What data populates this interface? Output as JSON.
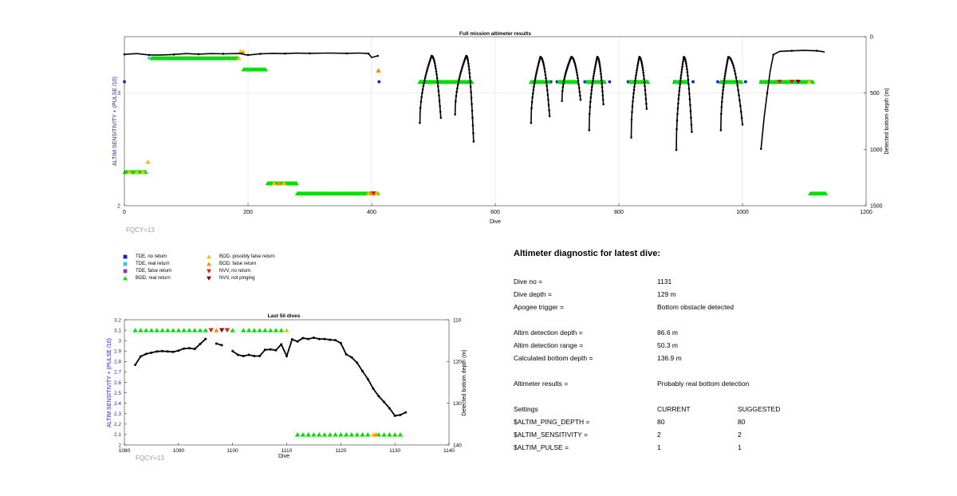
{
  "chart_data": [
    {
      "type": "scatter",
      "title": "Full mission altimeter results",
      "xlabel": "Dive",
      "ylabel_left": "ALTIM SENSITIVITY + (PULSE /10)",
      "ylabel_right": "Detected bottom depth (m)",
      "xlim": [
        0,
        1200
      ],
      "ylim_left": [
        2,
        3.5
      ],
      "ylim_right": [
        1500,
        0
      ],
      "xticks": [
        "0",
        "200",
        "400",
        "600",
        "800",
        "1000",
        "1200"
      ],
      "yticks_left": [
        "2",
        "3"
      ],
      "yticks_right": [
        "0",
        "500",
        "1000",
        "1500"
      ],
      "grid": true,
      "annotation": "FQCY=13",
      "series": [
        {
          "name": "TDE, no return",
          "color": "#0a22cc",
          "marker": "square",
          "y": 3.1,
          "x": [
            0,
            412,
            480,
            510,
            560,
            665,
            690,
            700,
            725,
            745,
            785,
            815,
            845,
            890,
            920,
            960,
            985,
            1005,
            1030,
            1055
          ]
        },
        {
          "name": "TDE, real return",
          "color": "#33c8e0",
          "marker": "square",
          "y": 3.31,
          "x": [
            40,
            45
          ]
        },
        {
          "name": "BOD, real return",
          "color": "#00e000",
          "marker": "triangle-up",
          "segments": [
            {
              "x0": 1,
              "x1": 35,
              "y": 2.3
            },
            {
              "x0": 45,
              "x1": 185,
              "y": 3.31
            },
            {
              "x0": 193,
              "x1": 230,
              "y": 3.21
            },
            {
              "x0": 232,
              "x1": 280,
              "y": 2.2
            },
            {
              "x0": 280,
              "x1": 410,
              "y": 2.11
            },
            {
              "x0": 478,
              "x1": 563,
              "y": 3.1
            },
            {
              "x0": 658,
              "x1": 688,
              "y": 3.1
            },
            {
              "x0": 703,
              "x1": 733,
              "y": 3.1
            },
            {
              "x0": 748,
              "x1": 778,
              "y": 3.1
            },
            {
              "x0": 818,
              "x1": 848,
              "y": 3.1
            },
            {
              "x0": 890,
              "x1": 910,
              "y": 3.1
            },
            {
              "x0": 965,
              "x1": 1000,
              "y": 3.1
            },
            {
              "x0": 1030,
              "x1": 1115,
              "y": 3.1
            },
            {
              "x0": 1110,
              "x1": 1135,
              "y": 2.11
            }
          ]
        },
        {
          "name": "BOD, possibly false return",
          "color": "#f5c000",
          "marker": "triangle-up",
          "points": [
            [
              8,
              2.3
            ],
            [
              20,
              2.3
            ],
            [
              30,
              2.3
            ],
            [
              38,
              2.39
            ],
            [
              185,
              3.31
            ],
            [
              188,
              3.37
            ],
            [
              192,
              3.37
            ],
            [
              242,
              2.2
            ],
            [
              258,
              2.2
            ],
            [
              395,
              2.11
            ],
            [
              408,
              2.11
            ],
            [
              1108,
              3.1
            ]
          ]
        },
        {
          "name": "BOD, false return",
          "color": "#ff8c00",
          "marker": "triangle-up",
          "points": [
            [
              411,
              3.2
            ],
            [
              250,
              2.2
            ],
            [
              400,
              2.11
            ]
          ]
        },
        {
          "name": "NVV, no return",
          "color": "#e41a1c",
          "marker": "triangle-down",
          "points": [
            [
              1060,
              3.1
            ],
            [
              1080,
              3.1
            ],
            [
              403,
              2.11
            ]
          ]
        },
        {
          "name": "NVV, not pinging",
          "color": "#8b0000",
          "marker": "triangle-down",
          "points": [
            [
              1090,
              3.1
            ]
          ]
        },
        {
          "name": "Detected bottom depth",
          "color": "#000000",
          "marker": "dot-line",
          "axis": "right",
          "curves": [
            {
              "x0": 0,
              "x1": 410,
              "pts": [
                [
                  0,
                  157
                ],
                [
                  20,
                  150
                ],
                [
                  40,
                  162
                ],
                [
                  60,
                  162
                ],
                [
                  80,
                  158
                ],
                [
                  100,
                  150
                ],
                [
                  120,
                  155
                ],
                [
                  140,
                  150
                ],
                [
                  160,
                  152
                ],
                [
                  180,
                  150
                ],
                [
                  190,
                  150
                ],
                [
                  195,
                  160
                ],
                [
                  200,
                  162
                ],
                [
                  210,
                  158
                ],
                [
                  220,
                  152
                ],
                [
                  240,
                  148
                ],
                [
                  260,
                  150
                ],
                [
                  280,
                  146
                ],
                [
                  300,
                  148
                ],
                [
                  330,
                  145
                ],
                [
                  360,
                  148
                ],
                [
                  380,
                  145
                ],
                [
                  395,
                  150
                ],
                [
                  400,
                  185
                ],
                [
                  410,
                  170
                ]
              ]
            },
            {
              "type": "dive",
              "x0": 478,
              "xpk": 497,
              "x1": 512,
              "top": 170,
              "bot": 765,
              "endbot": 720
            },
            {
              "type": "dive",
              "x0": 535,
              "xpk": 553,
              "x1": 565,
              "top": 170,
              "bot": 690,
              "endbot": 930
            },
            {
              "type": "dive",
              "x0": 658,
              "xpk": 673,
              "x1": 688,
              "top": 180,
              "bot": 765,
              "endbot": 705
            },
            {
              "type": "dive",
              "x0": 708,
              "xpk": 723,
              "x1": 738,
              "top": 180,
              "bot": 570,
              "endbot": 560
            },
            {
              "type": "dive",
              "x0": 752,
              "xpk": 765,
              "x1": 775,
              "top": 180,
              "bot": 830,
              "endbot": 600
            },
            {
              "type": "dive",
              "x0": 820,
              "xpk": 833,
              "x1": 845,
              "top": 180,
              "bot": 895,
              "endbot": 640
            },
            {
              "type": "dive",
              "x0": 893,
              "xpk": 905,
              "x1": 918,
              "top": 180,
              "bot": 1005,
              "endbot": 845
            },
            {
              "type": "dive",
              "x0": 965,
              "xpk": 977,
              "x1": 1000,
              "top": 180,
              "bot": 830,
              "endbot": 780
            },
            {
              "x0": 1030,
              "x1": 1133,
              "pts": [
                [
                  1030,
                  995
                ],
                [
                  1035,
                  720
                ],
                [
                  1040,
                  500
                ],
                [
                  1045,
                  300
                ],
                [
                  1050,
                  160
                ],
                [
                  1060,
                  130
                ],
                [
                  1080,
                  125
                ],
                [
                  1100,
                  122
                ],
                [
                  1120,
                  125
                ],
                [
                  1133,
                  135
                ]
              ]
            }
          ]
        }
      ]
    },
    {
      "type": "scatter",
      "title": "Last 50 dives",
      "xlabel": "Dive",
      "ylabel_left": "ALTIM SENSITIVITY + (PULSE /10)",
      "ylabel_right": "Detected bottom depth (m)",
      "xlim": [
        1080,
        1140
      ],
      "ylim_left": [
        2,
        3.2
      ],
      "ylim_right": [
        140,
        110
      ],
      "xticks": [
        "1080",
        "1090",
        "1100",
        "1110",
        "1120",
        "1130",
        "1140"
      ],
      "yticks_left": [
        "2",
        "2.1",
        "2.2",
        "2.3",
        "2.4",
        "2.5",
        "2.6",
        "2.7",
        "2.8",
        "2.9",
        "3",
        "3.1",
        "3.2"
      ],
      "yticks_right": [
        "110",
        "120",
        "130",
        "140"
      ],
      "annotation": "FQCY=13",
      "triangles_top": {
        "y": 3.1,
        "green": [
          1082,
          1083,
          1084,
          1085,
          1086,
          1087,
          1088,
          1089,
          1090,
          1091,
          1092,
          1093,
          1094,
          1095,
          1100,
          1102,
          1103,
          1104,
          1105,
          1106,
          1107,
          1108,
          1109
        ],
        "red_down": [
          1096,
          1099
        ],
        "darkred_down": [
          1098
        ],
        "orange": [
          1097
        ],
        "yellow": [
          1110
        ]
      },
      "triangles_bottom": {
        "y": 2.1,
        "green": [
          1112,
          1113,
          1114,
          1115,
          1116,
          1117,
          1118,
          1119,
          1120,
          1121,
          1122,
          1123,
          1124,
          1125,
          1127,
          1128,
          1129,
          1130,
          1131
        ],
        "yellow": [
          1126
        ],
        "orange": [
          1126.5
        ]
      },
      "depth_segments": [
        [
          [
            1082,
            120.8
          ],
          [
            1083,
            118.8
          ],
          [
            1084,
            118.2
          ],
          [
            1085,
            117.9
          ],
          [
            1086,
            117.6
          ],
          [
            1087,
            117.5
          ],
          [
            1088,
            117.6
          ],
          [
            1089,
            117.7
          ],
          [
            1090,
            117.4
          ],
          [
            1091,
            116.9
          ],
          [
            1092,
            116.8
          ],
          [
            1093,
            117.0
          ],
          [
            1094,
            115.8
          ],
          [
            1095,
            114.6
          ]
        ],
        [
          [
            1097,
            115.7
          ],
          [
            1098,
            116.1
          ]
        ],
        [
          [
            1100,
            117.5
          ],
          [
            1101,
            118.4
          ],
          [
            1102,
            118.7
          ],
          [
            1103,
            118.4
          ],
          [
            1104,
            118.7
          ],
          [
            1105,
            118.7
          ],
          [
            1106,
            117.2
          ],
          [
            1107,
            117.1
          ],
          [
            1108,
            117.3
          ],
          [
            1109,
            115.9
          ],
          [
            1110,
            118.7
          ],
          [
            1111,
            114.7
          ],
          [
            1112,
            115.2
          ],
          [
            1113,
            114.4
          ],
          [
            1114,
            114.6
          ],
          [
            1115,
            114.3
          ],
          [
            1116,
            114.6
          ],
          [
            1117,
            114.6
          ],
          [
            1118,
            114.8
          ],
          [
            1119,
            114.9
          ],
          [
            1120,
            115.6
          ],
          [
            1121,
            118.3
          ],
          [
            1122,
            119.0
          ],
          [
            1123,
            120.3
          ],
          [
            1124,
            122.3
          ],
          [
            1125,
            124.2
          ],
          [
            1126,
            126.5
          ],
          [
            1127,
            128.3
          ],
          [
            1128,
            129.7
          ],
          [
            1129,
            131.2
          ],
          [
            1130,
            133.0
          ],
          [
            1131,
            132.8
          ],
          [
            1132,
            132.2
          ]
        ]
      ]
    }
  ],
  "legend": [
    {
      "label": "TDE, no return",
      "color": "#0a22cc",
      "marker": "square"
    },
    {
      "label": "BOD, possibly false return",
      "color": "#f5c000",
      "marker": "triangle-up"
    },
    {
      "label": "TDE, real return",
      "color": "#33c8e0",
      "marker": "square"
    },
    {
      "label": "BOD, false return",
      "color": "#ff8c00",
      "marker": "triangle-up"
    },
    {
      "label": "TDE, false return",
      "color": "#8040c0",
      "marker": "square"
    },
    {
      "label": "NVV, no return",
      "color": "#e41a1c",
      "marker": "triangle-down"
    },
    {
      "label": "BOD, real return",
      "color": "#00e000",
      "marker": "triangle-up"
    },
    {
      "label": "NVV, not pinging",
      "color": "#8b0000",
      "marker": "triangle-down"
    }
  ],
  "diagnostic": {
    "title": "Altimeter diagnostic for latest dive:",
    "rows": [
      {
        "label": "Dive no =",
        "value": "1131"
      },
      {
        "label": "Dive depth =",
        "value": "129 m"
      },
      {
        "label": "Apogee trigger =",
        "value": "Bottom obstacle detected"
      },
      {
        "label": "Altim detection depth =",
        "value": "86.6 m"
      },
      {
        "label": "Altim detection range =",
        "value": "50.3 m"
      },
      {
        "label": "Calculated bottom depth =",
        "value": "136.9 m"
      },
      {
        "label": "Altimeter results =",
        "value": "Probably real bottom detection"
      }
    ],
    "settings_header": {
      "label": "Settings",
      "current": "CURRENT",
      "suggested": "SUGGESTED"
    },
    "settings": [
      {
        "label": "$ALTIM_PING_DEPTH =",
        "current": "80",
        "suggested": "80"
      },
      {
        "label": "$ALTIM_SENSITIVITY =",
        "current": "2",
        "suggested": "2"
      },
      {
        "label": "$ALTIM_PULSE =",
        "current": "1",
        "suggested": "1"
      }
    ]
  }
}
